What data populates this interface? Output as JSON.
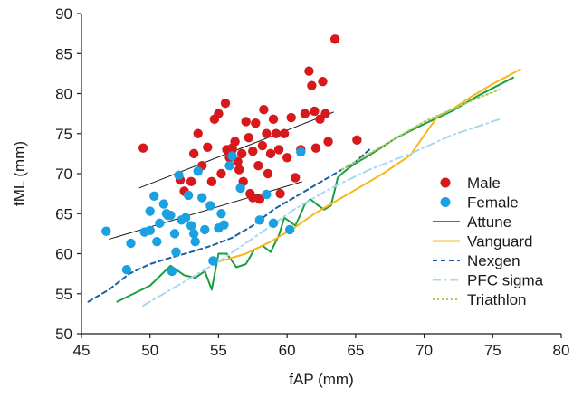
{
  "chart_data": {
    "type": "scatter",
    "title": "",
    "xlabel": "fAP (mm)",
    "ylabel": "fML (mm)",
    "xlim": [
      45,
      80
    ],
    "ylim": [
      50,
      90
    ],
    "xticks": [
      "45",
      "50",
      "55",
      "60",
      "65",
      "70",
      "75",
      "80"
    ],
    "yticks": [
      "50",
      "55",
      "60",
      "65",
      "70",
      "75",
      "80",
      "85",
      "90"
    ],
    "grid": false,
    "legend_position": "right",
    "points": [
      {
        "name": "Male",
        "color": "#d7191c",
        "marker": "circle",
        "data": [
          [
            49.5,
            73.2
          ],
          [
            52.2,
            69.2
          ],
          [
            52.5,
            67.8
          ],
          [
            53.0,
            69.0
          ],
          [
            53.2,
            72.5
          ],
          [
            53.5,
            75.0
          ],
          [
            53.8,
            71.0
          ],
          [
            54.2,
            73.3
          ],
          [
            54.5,
            69.0
          ],
          [
            54.7,
            76.8
          ],
          [
            55.0,
            77.5
          ],
          [
            55.2,
            70.0
          ],
          [
            55.5,
            78.8
          ],
          [
            55.6,
            73.0
          ],
          [
            55.8,
            72.0
          ],
          [
            56.0,
            73.2
          ],
          [
            56.2,
            74.0
          ],
          [
            56.4,
            71.5
          ],
          [
            56.5,
            70.5
          ],
          [
            56.7,
            72.5
          ],
          [
            56.8,
            69.0
          ],
          [
            57.0,
            76.5
          ],
          [
            57.2,
            74.5
          ],
          [
            57.3,
            67.5
          ],
          [
            57.5,
            72.8
          ],
          [
            57.7,
            76.3
          ],
          [
            57.9,
            71.0
          ],
          [
            58.0,
            66.8
          ],
          [
            58.2,
            73.5
          ],
          [
            58.3,
            78.0
          ],
          [
            58.5,
            75.0
          ],
          [
            58.6,
            70.0
          ],
          [
            58.8,
            72.5
          ],
          [
            59.0,
            76.8
          ],
          [
            59.2,
            75.0
          ],
          [
            59.4,
            73.0
          ],
          [
            59.5,
            67.5
          ],
          [
            59.8,
            75.0
          ],
          [
            60.0,
            72.0
          ],
          [
            60.3,
            77.0
          ],
          [
            60.6,
            69.5
          ],
          [
            61.0,
            73.0
          ],
          [
            61.3,
            77.5
          ],
          [
            61.6,
            82.8
          ],
          [
            61.8,
            81.0
          ],
          [
            62.0,
            77.8
          ],
          [
            62.1,
            73.2
          ],
          [
            62.4,
            76.8
          ],
          [
            62.6,
            81.5
          ],
          [
            62.8,
            77.5
          ],
          [
            63.0,
            74.0
          ],
          [
            63.5,
            86.8
          ],
          [
            65.1,
            74.2
          ],
          [
            56.0,
            73.0
          ],
          [
            57.5,
            67.0
          ]
        ]
      },
      {
        "name": "Female",
        "color": "#1ba1e2",
        "marker": "circle",
        "data": [
          [
            46.8,
            62.8
          ],
          [
            48.3,
            58.0
          ],
          [
            48.6,
            61.3
          ],
          [
            49.6,
            62.7
          ],
          [
            50.0,
            62.9
          ],
          [
            50.0,
            65.3
          ],
          [
            50.3,
            67.2
          ],
          [
            50.5,
            61.5
          ],
          [
            50.7,
            63.8
          ],
          [
            51.0,
            66.2
          ],
          [
            51.2,
            65.0
          ],
          [
            51.3,
            64.8
          ],
          [
            51.5,
            64.8
          ],
          [
            51.6,
            57.8
          ],
          [
            51.8,
            62.5
          ],
          [
            51.9,
            60.2
          ],
          [
            52.1,
            69.8
          ],
          [
            52.3,
            64.2
          ],
          [
            52.6,
            64.5
          ],
          [
            52.8,
            67.3
          ],
          [
            53.0,
            63.5
          ],
          [
            53.2,
            62.5
          ],
          [
            53.3,
            61.5
          ],
          [
            53.5,
            70.3
          ],
          [
            53.8,
            67.0
          ],
          [
            54.0,
            63.0
          ],
          [
            54.4,
            66.0
          ],
          [
            54.6,
            59.1
          ],
          [
            55.0,
            63.2
          ],
          [
            55.2,
            65.0
          ],
          [
            55.4,
            63.6
          ],
          [
            55.8,
            71.0
          ],
          [
            56.0,
            72.2
          ],
          [
            56.6,
            68.2
          ],
          [
            58.0,
            64.2
          ],
          [
            58.5,
            67.4
          ],
          [
            59.0,
            63.8
          ],
          [
            60.2,
            63.0
          ],
          [
            61.0,
            72.7
          ]
        ]
      }
    ],
    "trend_lines": [
      {
        "name": "Male fit",
        "color": "#1a1a1a",
        "x": [
          49.2,
          63.4
        ],
        "y": [
          68.2,
          77.7
        ]
      },
      {
        "name": "Female fit",
        "color": "#1a1a1a",
        "x": [
          47.0,
          61.1
        ],
        "y": [
          61.8,
          69.0
        ]
      }
    ],
    "series": [
      {
        "name": "Attune",
        "color": "#1a9e3f",
        "dash": "solid",
        "x": [
          47.6,
          50.0,
          51.5,
          52.5,
          53.3,
          54.0,
          54.5,
          55.0,
          55.6,
          56.3,
          57.0,
          57.6,
          58.2,
          58.8,
          59.4,
          59.8,
          60.2,
          60.6,
          61.0,
          61.3,
          61.7,
          62.2,
          62.7,
          63.2,
          63.7,
          64.0,
          64.5,
          65.0,
          66.0,
          68.0,
          70.0,
          72.0,
          74.0,
          76.5
        ],
        "y": [
          54.0,
          56.0,
          58.5,
          57.3,
          57.0,
          57.8,
          55.5,
          60.0,
          60.0,
          58.3,
          58.7,
          60.5,
          61.0,
          60.2,
          62.3,
          64.5,
          64.0,
          63.5,
          65.0,
          66.2,
          66.8,
          66.1,
          65.5,
          66.0,
          69.5,
          70.0,
          70.7,
          71.3,
          72.3,
          74.5,
          76.2,
          77.8,
          79.8,
          82.0
        ]
      },
      {
        "name": "Vanguard",
        "color": "#f6b81a",
        "dash": "solid",
        "x": [
          54.6,
          57.0,
          58.8,
          60.5,
          62.0,
          63.5,
          65.0,
          67.0,
          69.0,
          70.0,
          71.0,
          72.0,
          73.5,
          75.0,
          77.0
        ],
        "y": [
          58.8,
          60.0,
          61.5,
          63.2,
          65.0,
          66.5,
          68.0,
          70.0,
          72.3,
          74.8,
          77.2,
          78.0,
          79.7,
          81.2,
          83.0
        ]
      },
      {
        "name": "Nexgen",
        "color": "#1a5fa6",
        "dash": "dashed",
        "x": [
          45.5,
          47.0,
          48.5,
          50.0,
          51.5,
          53.0,
          54.5,
          56.0,
          57.5,
          59.0,
          60.5,
          62.0,
          63.5,
          65.0,
          66.0
        ],
        "y": [
          54.0,
          55.5,
          57.5,
          58.7,
          59.5,
          60.2,
          61.0,
          62.0,
          63.5,
          65.5,
          67.0,
          68.5,
          70.0,
          71.5,
          73.0
        ]
      },
      {
        "name": "PFC sigma",
        "color": "#a9d7ef",
        "dash": "dashdot",
        "x": [
          49.5,
          52.0,
          55.0,
          58.0,
          60.5,
          63.0,
          66.0,
          69.0,
          72.0,
          75.5
        ],
        "y": [
          53.5,
          56.0,
          59.0,
          62.5,
          65.5,
          68.0,
          70.5,
          72.5,
          74.8,
          76.8
        ]
      },
      {
        "name": "Triathlon",
        "color": "#a9cc5a",
        "dash": "dotted",
        "x": [
          64.0,
          66.0,
          68.0,
          70.0,
          72.0,
          74.0,
          75.5
        ],
        "y": [
          70.5,
          72.5,
          74.5,
          76.5,
          78.0,
          79.5,
          80.5
        ]
      }
    ]
  }
}
